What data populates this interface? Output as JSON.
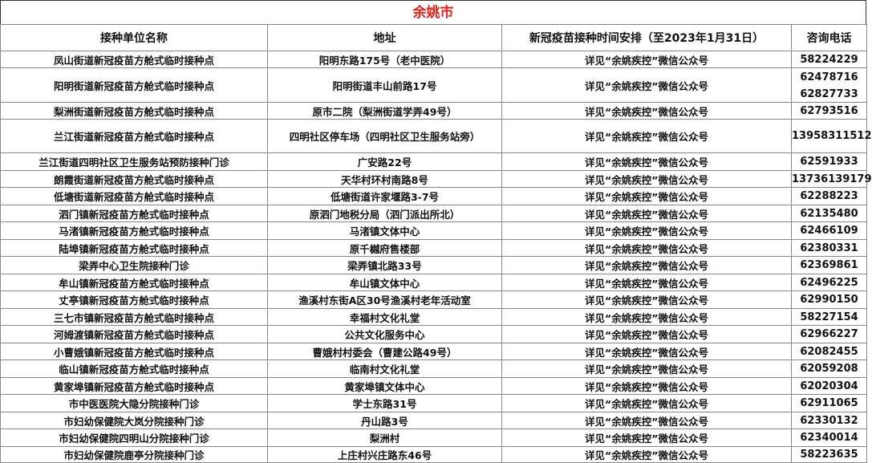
{
  "title": "余姚市",
  "colors": {
    "title": "#e0221b"
  },
  "headers": [
    "接种单位名称",
    "地址",
    "新冠疫苗接种时间安排（至2023年1月31日）",
    "咨询电话"
  ],
  "rows": [
    {
      "name": "凤山街道新冠疫苗方舱式临时接种点",
      "address": "阳明东路175号（老中医院）",
      "schedule": "详见“余姚疾控”微信公众号",
      "phone": "58224229"
    },
    {
      "name": "阳明街道新冠疫苗方舱式临时接种点",
      "address": "阳明街道丰山前路17号",
      "schedule": "详见“余姚疾控”微信公众号",
      "phone": "62478716",
      "phone2": "62827733"
    },
    {
      "name": "梨洲街道新冠疫苗方舱式临时接种点",
      "address": "原市二院（梨洲街道学弄49号）",
      "schedule": "详见“余姚疾控”微信公众号",
      "phone": "62793516"
    },
    {
      "name": "兰江街道新冠疫苗方舱式临时接种点",
      "address": "四明社区停车场（四明社区卫生服务站旁）",
      "schedule": "详见“余姚疾控”微信公众号",
      "phone": "13958311512"
    },
    {
      "name": "兰江街道四明社区卫生服务站预防接种门诊",
      "address": "广安路22号",
      "schedule": "详见“余姚疾控”微信公众号",
      "phone": "62591933"
    },
    {
      "name": "朗霞街道新冠疫苗方舱式临时接种点",
      "address": "天华村环村南路8号",
      "schedule": "详见“余姚疾控”微信公众号",
      "phone": "13736139179"
    },
    {
      "name": "低塘街道新冠疫苗方舱式临时接种点",
      "address": "低塘街道许家堰路3-7号",
      "schedule": "详见“余姚疾控”微信公众号",
      "phone": "62288223"
    },
    {
      "name": "泗门镇新冠疫苗方舱式临时接种点",
      "address": "原泗门地税分局（泗门派出所北）",
      "schedule": "详见“余姚疾控”微信公众号",
      "phone": "62135480"
    },
    {
      "name": "马渚镇新冠疫苗方舱式临时接种点",
      "address": "马渚镇文体中心",
      "schedule": "详见“余姚疾控”微信公众号",
      "phone": "62466109"
    },
    {
      "name": "陆埠镇新冠疫苗方舱式临时接种点",
      "address": "原千樾府售楼部",
      "schedule": "详见“余姚疾控”微信公众号",
      "phone": "62380331"
    },
    {
      "name": "梁弄中心卫生院接种门诊",
      "address": "梁弄镇北路33号",
      "schedule": "详见“余姚疾控”微信公众号",
      "phone": "62369861"
    },
    {
      "name": "牟山镇新冠疫苗方舱式临时接种点",
      "address": "牟山镇文体中心",
      "schedule": "详见“余姚疾控”微信公众号",
      "phone": "62496225"
    },
    {
      "name": "丈亭镇新冠疫苗方舱式临时接种点",
      "address": "渔溪村东街A区30号渔溪村老年活动室",
      "schedule": "详见“余姚疾控”微信公众号",
      "phone": "62990150"
    },
    {
      "name": "三七市镇新冠疫苗方舱式临时接种点",
      "address": "幸福村文化礼堂",
      "schedule": "详见“余姚疾控”微信公众号",
      "phone": "58227154"
    },
    {
      "name": "河姆渡镇新冠疫苗方舱式临时接种点",
      "address": "公共文化服务中心",
      "schedule": "详见“余姚疾控”微信公众号",
      "phone": "62966227"
    },
    {
      "name": "小曹娥镇新冠疫苗方舱式临时接种点",
      "address": "曹娥村村委会（曹建公路49号）",
      "schedule": "详见“余姚疾控”微信公众号",
      "phone": "62082455"
    },
    {
      "name": "临山镇新冠疫苗方舱式临时接种点",
      "address": "临南村文化礼堂",
      "schedule": "详见“余姚疾控”微信公众号",
      "phone": "62059208"
    },
    {
      "name": "黄家埠镇新冠疫苗方舱式临时接种点",
      "address": "黄家埠镇文体中心",
      "schedule": "详见“余姚疾控”微信公众号",
      "phone": "62020304"
    },
    {
      "name": "市中医医院大隐分院接种门诊",
      "address": "学士东路31号",
      "schedule": "详见“余姚疾控”微信公众号",
      "phone": "62911065"
    },
    {
      "name": "市妇幼保健院大岚分院接种门诊",
      "address": "丹山路3号",
      "schedule": "详见“余姚疾控”微信公众号",
      "phone": "62330132"
    },
    {
      "name": "市妇幼保健院四明山分院接种门诊",
      "address": "梨洲村",
      "schedule": "详见“余姚疾控”微信公众号",
      "phone": "62340014"
    },
    {
      "name": "市妇幼保健院鹿亭分院接种门诊",
      "address": "上庄村兴庄路东46号",
      "schedule": "详见“余姚疾控”微信公众号",
      "phone": "58223635"
    }
  ]
}
